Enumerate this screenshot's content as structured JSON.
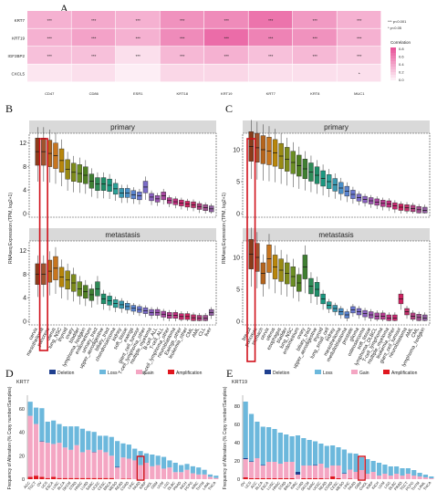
{
  "panel_letters": [
    "A",
    "B",
    "C",
    "D",
    "E"
  ],
  "heatmap": {
    "rows": [
      "KRT7",
      "KRT19",
      "IGF2BP2",
      "CXCL5"
    ],
    "cols": [
      "CD47",
      "CD86",
      "ESR1",
      "KRT18",
      "KRT19",
      "KRT7",
      "KRT8",
      "MUC1"
    ],
    "sig_legend": [
      "*** p<0.001",
      "* p<0.05"
    ],
    "corr_title": "Correlation",
    "corr_ticks": [
      "0.8",
      "0.6",
      "0.4",
      "0.2",
      "0.0"
    ],
    "colors": {
      "high": "#e8559a",
      "low": "#fdeef5"
    }
  },
  "chart_data": [
    {
      "type": "heatmap",
      "rows": [
        "KRT7",
        "KRT19",
        "IGF2BP2",
        "CXCL5"
      ],
      "cols": [
        "CD47",
        "CD86",
        "ESR1",
        "KRT18",
        "KRT19",
        "KRT7",
        "KRT8",
        "MUC1"
      ],
      "values": [
        [
          0.4,
          0.45,
          0.4,
          0.6,
          0.65,
          0.8,
          0.55,
          0.4
        ],
        [
          0.4,
          0.5,
          0.4,
          0.65,
          0.85,
          0.7,
          0.6,
          0.4
        ],
        [
          0.3,
          0.3,
          0.1,
          0.35,
          0.4,
          0.3,
          0.35,
          0.25
        ],
        [
          0.05,
          0.1,
          0.0,
          0.15,
          0.15,
          0.1,
          0.1,
          0.1
        ]
      ],
      "labels": [
        [
          "***",
          "***",
          "***",
          "***",
          "***",
          "***",
          "***",
          "***"
        ],
        [
          "***",
          "***",
          "***",
          "***",
          "***",
          "***",
          "***",
          "***"
        ],
        [
          "***",
          "***",
          "***",
          "***",
          "***",
          "***",
          "***",
          "***"
        ],
        [
          "",
          "",
          "",
          "",
          "",
          "",
          "",
          "*"
        ]
      ]
    },
    {
      "type": "box",
      "panel": "B",
      "ylabel": "RNAseq Expression (TPM, log2+1)",
      "facets": [
        {
          "strip": "primary",
          "ylim": [
            0,
            13
          ],
          "yticks": [
            0,
            4,
            8,
            12
          ],
          "medians": [
            10.5,
            10.5,
            10.2,
            9.8,
            9.0,
            7.5,
            7.0,
            6.8,
            6.5,
            5.5,
            5.0,
            5.0,
            4.8,
            4.2,
            3.5,
            3.5,
            3.2,
            3.0,
            4.5,
            2.8,
            2.5,
            3.0,
            2.2,
            2.0,
            1.8,
            1.6,
            1.5,
            1.2,
            1.0,
            0.8
          ]
        },
        {
          "strip": "metastasis",
          "ylim": [
            0,
            13
          ],
          "yticks": [
            0,
            4,
            8,
            12
          ],
          "medians": [
            8.0,
            8.0,
            8.5,
            9.0,
            7.5,
            7.0,
            6.5,
            5.5,
            5.0,
            4.5,
            5.5,
            3.8,
            3.5,
            3.0,
            2.8,
            2.5,
            2.2,
            2.0,
            1.8,
            1.5,
            1.5,
            1.2,
            1.0,
            1.0,
            0.8,
            0.8,
            0.6,
            0.5,
            0.5,
            1.5
          ]
        }
      ],
      "x": [
        "cervix",
        "mesothelioma",
        "pancreas",
        "uterus",
        "lung_NSC",
        "thyroid",
        "ovary",
        "bladder",
        "lymphoma_hodgkin",
        "endometrium",
        "urinary_tract",
        "upper_aerodigestive",
        "biliary_tract",
        "chondrosarcoma",
        "kidney",
        "soft_tissue",
        "ewings",
        "giant_cell_tumour",
        "T-cell_lymphoma_other",
        "multiple_myeloma",
        "B-cell_ALL",
        "T-cell_ALL",
        "B-cell_lymphoma_other",
        "neuroblastoma",
        "Ewings_other",
        "leukemia_other",
        "CML",
        "AML",
        "CLL",
        "liver"
      ]
    },
    {
      "type": "box",
      "panel": "C",
      "ylabel": "RNAseq Expression (TPM, log2+1)",
      "facets": [
        {
          "strip": "primary",
          "ylim": [
            0,
            12
          ],
          "yticks": [
            0,
            5,
            10
          ],
          "medians": [
            10.5,
            10.3,
            10.0,
            9.8,
            9.5,
            9.0,
            8.5,
            8.0,
            7.5,
            7.0,
            6.5,
            6.0,
            5.5,
            5.0,
            4.5,
            4.0,
            3.5,
            3.0,
            2.5,
            2.2,
            2.0,
            1.8,
            1.6,
            1.5,
            1.2,
            1.0,
            0.9,
            0.8,
            0.6,
            0.5
          ]
        },
        {
          "strip": "metastasis",
          "ylim": [
            0,
            12
          ],
          "yticks": [
            0,
            5,
            10
          ],
          "medians": [
            10.5,
            10.0,
            7.5,
            9.8,
            8.5,
            8.0,
            7.5,
            7.0,
            6.0,
            8.5,
            5.5,
            5.0,
            3.5,
            2.5,
            2.0,
            1.5,
            1.0,
            1.8,
            1.5,
            1.2,
            1.0,
            0.8,
            0.8,
            0.5,
            0.5,
            3.5,
            1.5,
            0.8,
            0.6,
            0.5
          ]
        }
      ],
      "x": [
        "breast",
        "pancreas",
        "stomach",
        "cervix",
        "uterus",
        "esophagus",
        "bladder",
        "lung_NSC",
        "endometrium",
        "ovary",
        "biliary_tract",
        "upper_aerodigestive",
        "thyroid",
        "lung_small_cell",
        "kidney",
        "mesothelioma",
        "medulloblastoma",
        "prostate",
        "glioma",
        "osteosarcoma",
        "soft_tissue",
        "lymphoma_DLBCL",
        "T-cell_lymphoma",
        "multiple_myeloma",
        "leukemia_other",
        "giant_cell_tumour",
        "neuroblastoma",
        "AML",
        "CML",
        "lymphoma_hodgkin"
      ]
    },
    {
      "type": "bar",
      "panel": "D",
      "title": "KRT7",
      "ylabel": "Frequency of Alteration (% Copy number/Samples)",
      "legend": [
        "Deletion",
        "Loss",
        "Gain",
        "Amplification"
      ],
      "colors": {
        "Deletion": "#1f3f8f",
        "Loss": "#6cb8dc",
        "Gain": "#f4a6c3",
        "Amplification": "#e0161e"
      },
      "ylim": [
        0,
        70
      ],
      "yticks": [
        0,
        20,
        40,
        60
      ],
      "x": [
        "ACC",
        "TGCT",
        "OV",
        "UCS",
        "ESCA",
        "LUSC",
        "BLCA",
        "SKCM",
        "STAD",
        "HNSC",
        "LUAD",
        "SARC",
        "UCEC",
        "CESC",
        "BRCA",
        "MESO",
        "READ",
        "COAD",
        "LIHC",
        "PAAD",
        "KIRP",
        "CHOL",
        "GBM",
        "UVM",
        "LGG",
        "DLBC",
        "PRAD",
        "KICH",
        "PCPG",
        "KIRC",
        "THYM",
        "LAML",
        "THCA"
      ],
      "values": {
        "Deletion": [
          0,
          0,
          0.5,
          0,
          0,
          0,
          0,
          0,
          0,
          0,
          0,
          0.3,
          0,
          0,
          0,
          0.5,
          0,
          0,
          0,
          0,
          0,
          0,
          0,
          0,
          0,
          0,
          0,
          0,
          0,
          0,
          0,
          0,
          0
        ],
        "Loss": [
          12,
          14,
          28,
          18,
          20,
          16,
          18,
          20,
          16,
          20,
          16,
          17,
          12,
          14,
          16,
          22,
          12,
          12,
          10,
          12,
          8,
          10,
          8,
          10,
          6,
          8,
          6,
          5,
          6,
          6,
          4,
          2,
          2
        ],
        "Gain": [
          52,
          44,
          30,
          30,
          28,
          30,
          26,
          24,
          28,
          22,
          24,
          22,
          24,
          22,
          19,
          10,
          18,
          17,
          16,
          12,
          14,
          11,
          12,
          9,
          10,
          6,
          6,
          8,
          5,
          4,
          4,
          2,
          1
        ],
        "Amplification": [
          2,
          3,
          2,
          1,
          2,
          1,
          1,
          1,
          1,
          1,
          1,
          1,
          1,
          1,
          1,
          0,
          0.5,
          0.5,
          0,
          0,
          0,
          0,
          0,
          0,
          0,
          0,
          0,
          0,
          0,
          0,
          0,
          0,
          0
        ]
      }
    },
    {
      "type": "bar",
      "panel": "E",
      "title": "KRT19",
      "ylabel": "Frequency of Alteration (% Copy number/Samples)",
      "legend": [
        "Deletion",
        "Loss",
        "Gain",
        "Amplification"
      ],
      "colors": {
        "Deletion": "#1f3f8f",
        "Loss": "#6cb8dc",
        "Gain": "#f4a6c3",
        "Amplification": "#e0161e"
      },
      "ylim": [
        0,
        90
      ],
      "yticks": [
        0,
        20,
        40,
        60,
        80
      ],
      "x": [
        "OV",
        "UCS",
        "ACC",
        "BLCA",
        "ESCA",
        "LUSC",
        "HNSC",
        "STAD",
        "BRCA",
        "KIRC",
        "LUAD",
        "SKCM",
        "SARC",
        "UCEC",
        "READ",
        "COAD",
        "CESC",
        "MESO",
        "LIHC",
        "PAAD",
        "GBM",
        "CHOL",
        "KIRP",
        "KICH",
        "UVM",
        "LGG",
        "DLBC",
        "PRAD",
        "TGCT",
        "PCPG",
        "THYM",
        "LAML",
        "THCA"
      ],
      "values": {
        "Deletion": [
          1,
          0.5,
          0,
          0.5,
          0,
          0,
          0,
          0,
          0,
          3,
          0,
          0,
          0.5,
          0,
          0,
          0,
          0,
          0.5,
          0,
          0,
          0,
          0,
          0,
          0,
          0,
          0,
          0,
          0,
          0,
          0,
          0,
          0,
          0
        ],
        "Loss": [
          62,
          52,
          40,
          42,
          38,
          36,
          34,
          30,
          28,
          40,
          30,
          28,
          26,
          22,
          24,
          22,
          20,
          26,
          18,
          20,
          14,
          16,
          12,
          14,
          10,
          10,
          8,
          8,
          6,
          6,
          4,
          3,
          2
        ],
        "Gain": [
          20,
          18,
          22,
          14,
          18,
          18,
          16,
          18,
          18,
          5,
          14,
          14,
          14,
          16,
          12,
          12,
          14,
          6,
          10,
          8,
          10,
          6,
          8,
          4,
          6,
          4,
          6,
          4,
          6,
          4,
          3,
          2,
          1
        ],
        "Amplification": [
          2,
          1,
          1,
          1,
          1,
          1,
          1,
          1,
          1,
          0,
          1,
          1,
          1,
          1,
          0.5,
          3,
          1,
          0,
          0.5,
          0,
          0,
          0,
          0,
          0,
          0,
          0,
          0,
          0,
          0,
          0,
          0,
          0,
          0
        ]
      }
    }
  ]
}
